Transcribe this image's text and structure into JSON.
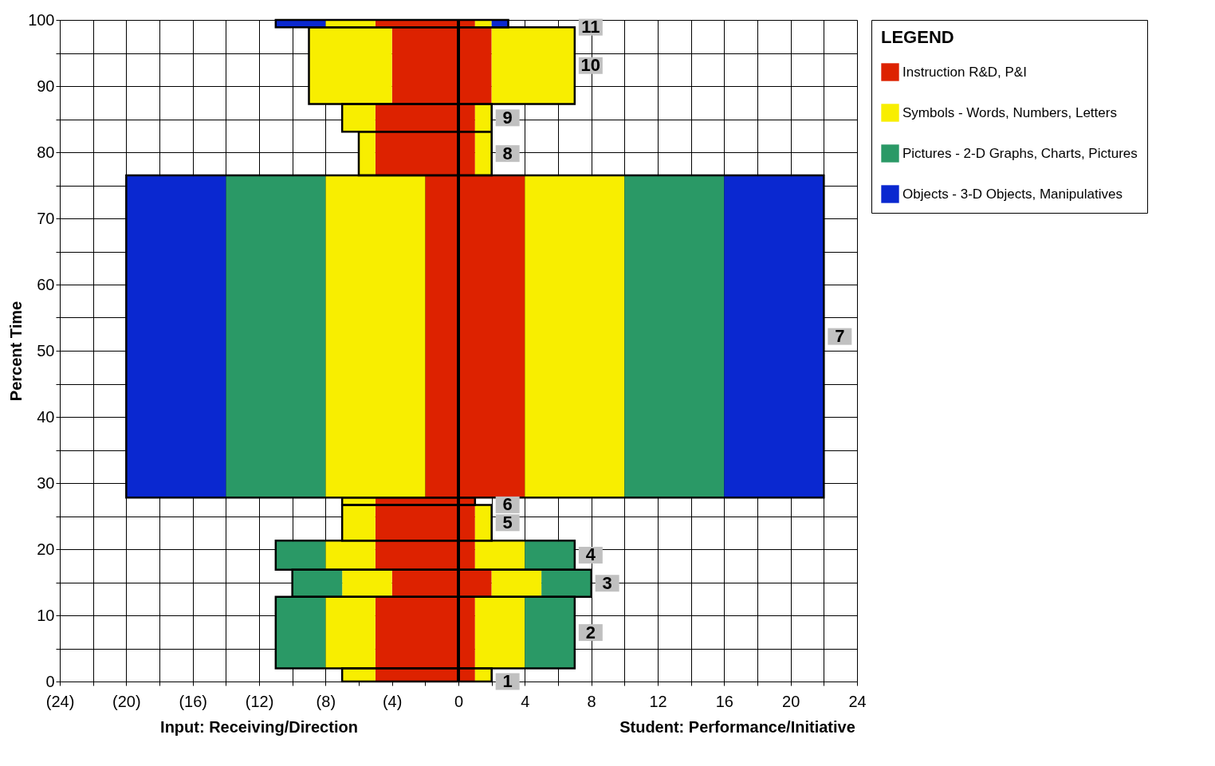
{
  "chart_data": {
    "type": "histogram",
    "orientation": "horizontal",
    "ylabel": "Percent Time",
    "legend_title": "LEGEND",
    "legend": "right",
    "grid": true,
    "bins": [
      0,
      2,
      12.8,
      16.9,
      21.3,
      26.7,
      27.8,
      76.5,
      83.1,
      87.3,
      98.9,
      100
    ],
    "series": [
      {
        "name": "Instruction R&D, P&I",
        "color": "#dd2200",
        "base": [
          -5,
          -5,
          -4,
          -5,
          -5,
          -5,
          -2,
          -5,
          -5,
          -4,
          -5
        ],
        "values": [
          6,
          6,
          6,
          6,
          6,
          6,
          6,
          6,
          6,
          6,
          6
        ]
      },
      {
        "name": "Symbols - Words, Numbers, Letters",
        "color": "#f8ee00",
        "base": [
          -7,
          -8,
          -7,
          -8,
          -7,
          -7,
          -8,
          -6,
          -7,
          -9,
          -8
        ],
        "values": [
          2,
          3,
          3,
          3,
          2,
          2,
          6,
          1,
          2,
          5,
          3
        ]
      },
      {
        "color": "#f8ee00",
        "base": [
          1,
          1,
          2,
          1,
          1,
          null,
          4,
          1,
          1,
          2,
          1
        ],
        "values": [
          1,
          3,
          3,
          3,
          1,
          null,
          6,
          1,
          1,
          5,
          1
        ]
      },
      {
        "name": "Pictures - 2-D Graphs, Charts, Pictures",
        "color": "#2a9966",
        "base": [
          null,
          -11,
          -10,
          -11,
          null,
          null,
          -14,
          null,
          null,
          null,
          null
        ],
        "values": [
          null,
          3,
          3,
          3,
          null,
          null,
          6,
          null,
          null,
          null,
          null
        ]
      },
      {
        "color": "#2a9966",
        "base": [
          null,
          4,
          5,
          4,
          null,
          null,
          10,
          null,
          null,
          null,
          null
        ],
        "values": [
          null,
          3,
          3,
          3,
          null,
          null,
          6,
          null,
          null,
          null,
          null
        ]
      },
      {
        "name": "Objects - 3-D Objects, Manipulatives",
        "color": "#0a28d0",
        "base": [
          null,
          null,
          null,
          null,
          null,
          null,
          -20,
          null,
          null,
          null,
          -11
        ],
        "values": [
          null,
          null,
          null,
          null,
          null,
          null,
          6,
          null,
          null,
          null,
          3
        ]
      },
      {
        "color": "#0a28d0",
        "base": [
          null,
          null,
          null,
          null,
          null,
          null,
          16,
          null,
          null,
          null,
          2
        ],
        "values": [
          null,
          null,
          null,
          null,
          null,
          null,
          6,
          null,
          null,
          null,
          1
        ]
      }
    ],
    "xlim": [
      -24,
      24
    ],
    "ylim": [
      0,
      100
    ],
    "xticks": [
      {
        "value": -24,
        "label": "(24)"
      },
      {
        "value": -22,
        "label": null
      },
      {
        "value": -20,
        "label": "(20)"
      },
      {
        "value": -18,
        "label": null
      },
      {
        "value": -16,
        "label": "(16)"
      },
      {
        "value": -14,
        "label": null
      },
      {
        "value": -12,
        "label": "(12)"
      },
      {
        "value": -10,
        "label": null
      },
      {
        "value": -8,
        "label": "(8)"
      },
      {
        "value": -6,
        "label": null
      },
      {
        "value": -4,
        "label": "(4)"
      },
      {
        "value": -2,
        "label": null
      },
      0,
      {
        "value": 2,
        "label": null
      },
      4,
      {
        "value": 6,
        "label": null
      },
      8,
      {
        "value": 10,
        "label": null
      },
      12,
      {
        "value": 14,
        "label": null
      },
      16,
      {
        "value": 18,
        "label": null
      },
      20,
      {
        "value": 22,
        "label": null
      },
      24
    ],
    "yticks": [
      0,
      {
        "value": 5,
        "label": null
      },
      10,
      {
        "value": 15,
        "label": null
      },
      20,
      {
        "value": 25,
        "label": null
      },
      30,
      {
        "value": 35,
        "label": null
      },
      40,
      {
        "value": 45,
        "label": null
      },
      50,
      {
        "value": 55,
        "label": null
      },
      60,
      {
        "value": 65,
        "label": null
      },
      70,
      {
        "value": 75,
        "label": null
      },
      80,
      {
        "value": 85,
        "label": null
      },
      90,
      {
        "value": 95,
        "label": null
      },
      100
    ],
    "ref_lines": [
      {
        "axis": "x",
        "value": 0,
        "color": "#000000"
      }
    ],
    "categories": [
      "1",
      "2",
      "3",
      "4",
      "5",
      "6",
      "7",
      "8",
      "9",
      "10",
      "11"
    ],
    "annotations": [
      "Input: Receiving/Direction",
      "Student: Performance/Initiative"
    ]
  }
}
